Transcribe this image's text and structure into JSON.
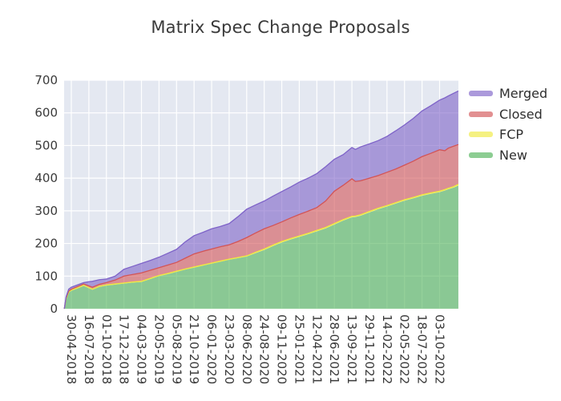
{
  "title": "Matrix Spec Change Proposals",
  "colors": {
    "plot_background": "#e4e8f1",
    "grid": "#ffffff",
    "tick_text": "#3a3a3a",
    "legend_text": "#2e2e2e",
    "series": {
      "New": "#4eb257",
      "FCP": "#efe93d",
      "Closed": "#d35456",
      "Merged": "#7e63c8"
    }
  },
  "legend": {
    "items": [
      {
        "label": "Merged",
        "series": "Merged"
      },
      {
        "label": "Closed",
        "series": "Closed"
      },
      {
        "label": "FCP",
        "series": "FCP"
      },
      {
        "label": "New",
        "series": "New"
      }
    ]
  },
  "chart_data": {
    "type": "area",
    "stacked": true,
    "title": "Matrix Spec Change Proposals",
    "grid": true,
    "legend_position": "right",
    "ylim": [
      0,
      700
    ],
    "y_ticks": [
      0,
      100,
      200,
      300,
      400,
      500,
      600,
      700
    ],
    "x_tick_labels": [
      "30-04-2018",
      "16-07-2018",
      "01-10-2018",
      "17-12-2018",
      "04-03-2019",
      "20-05-2019",
      "05-08-2019",
      "21-10-2019",
      "06-01-2020",
      "23-03-2020",
      "08-06-2020",
      "24-08-2020",
      "09-11-2020",
      "25-01-2021",
      "12-04-2021",
      "28-06-2021",
      "13-09-2021",
      "29-11-2021",
      "14-02-2022",
      "02-05-2022",
      "18-07-2022",
      "03-10-2022"
    ],
    "series_bottom_to_top": [
      "New",
      "FCP",
      "Closed",
      "Merged"
    ],
    "samples": {
      "x_tick_index": [
        -0.4,
        -0.3,
        -0.15,
        0,
        0.35,
        0.7,
        1.0,
        1.2,
        1.6,
        2,
        2.5,
        3,
        3.5,
        4,
        4.5,
        5,
        5.5,
        6,
        6.5,
        7,
        7.5,
        8,
        8.5,
        9,
        9.5,
        10,
        10.5,
        11,
        11.5,
        12,
        12.5,
        13,
        13.5,
        14,
        14.5,
        15,
        15.5,
        16,
        16.2,
        16.5,
        17,
        17.5,
        18,
        18.5,
        19,
        19.5,
        20,
        20.5,
        21,
        21.3,
        21.5,
        21.8,
        22.07
      ],
      "New": [
        0,
        30,
        50,
        55,
        62,
        70,
        63,
        58,
        67,
        71,
        74,
        77,
        80,
        82,
        91,
        100,
        106,
        113,
        120,
        126,
        132,
        138,
        144,
        150,
        155,
        160,
        170,
        180,
        192,
        203,
        212,
        220,
        228,
        237,
        246,
        258,
        270,
        280,
        281,
        285,
        295,
        305,
        313,
        322,
        331,
        338,
        346,
        352,
        357,
        362,
        366,
        371,
        377
      ],
      "FCP": [
        0,
        1,
        1,
        2,
        2,
        2,
        2,
        2,
        2,
        2,
        2,
        2,
        2,
        2,
        2,
        2,
        2,
        2,
        2,
        2,
        2,
        2,
        2,
        2,
        2,
        2,
        3,
        3,
        3,
        3,
        3,
        3,
        3,
        3,
        3,
        3,
        3,
        3,
        3,
        3,
        3,
        3,
        3,
        3,
        3,
        3,
        3,
        3,
        3,
        3,
        3,
        3,
        4
      ],
      "Closed": [
        0,
        2,
        3,
        3,
        4,
        4,
        5,
        6,
        6,
        7,
        12,
        21,
        23,
        26,
        25,
        24,
        26,
        27,
        33,
        40,
        42,
        43,
        44,
        44,
        49,
        56,
        59,
        62,
        60,
        60,
        63,
        66,
        68,
        70,
        81,
        99,
        105,
        115,
        106,
        104,
        102,
        100,
        102,
        103,
        106,
        111,
        117,
        121,
        127,
        119,
        123,
        124,
        122
      ],
      "Merged": [
        0,
        3,
        6,
        6,
        5,
        4,
        13,
        18,
        14,
        11,
        12,
        21,
        25,
        29,
        30,
        32,
        36,
        40,
        50,
        56,
        58,
        62,
        62,
        65,
        76,
        87,
        86,
        85,
        90,
        93,
        95,
        99,
        101,
        104,
        105,
        98,
        94,
        96,
        98,
        104,
        105,
        107,
        110,
        117,
        123,
        131,
        140,
        146,
        152,
        162,
        160,
        162,
        164
      ]
    },
    "end_totals": {
      "New": 377,
      "FCP": 4,
      "Closed": 122,
      "Merged": 164,
      "total": 667
    }
  }
}
